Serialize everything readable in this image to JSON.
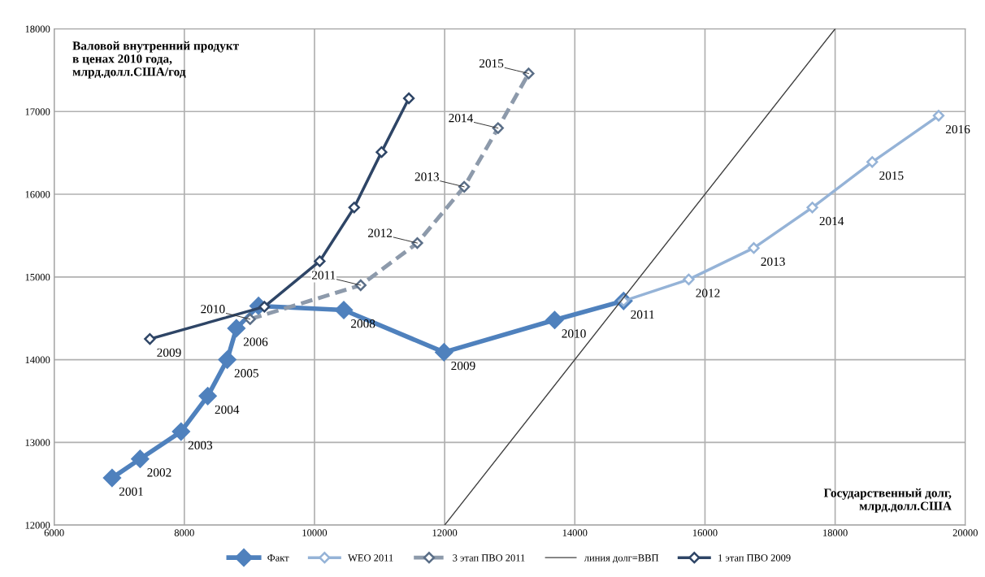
{
  "chart_data": {
    "type": "line",
    "xlabel": "Государственный долг,\nмлрд.долл.США",
    "ylabel": "Валовой внутренний продукт\nв ценах 2010 года,\nмлрд.долл.США/год",
    "series": [
      {
        "name": "Факт",
        "color": "#4f81bd",
        "line_style": "solid",
        "marker": "diamond",
        "x": [
          6890,
          7320,
          7950,
          8360,
          8660,
          8800,
          9140,
          10450,
          11990,
          13690,
          14750
        ],
        "values": [
          12570,
          12800,
          13130,
          13560,
          14000,
          14380,
          14650,
          14600,
          14090,
          14480,
          14710
        ]
      },
      {
        "name": "WEO 2011",
        "color": "#95b3d7",
        "line_style": "solid",
        "marker": "diamond",
        "x": [
          14750,
          15750,
          16750,
          17650,
          18570,
          19590
        ],
        "values": [
          14710,
          14970,
          15350,
          15840,
          16390,
          16950
        ]
      },
      {
        "name": "3 этап ПВО 2011",
        "color": "#5a6e87",
        "line_style": "dashed",
        "marker": "diamond",
        "x": [
          9010,
          10710,
          11580,
          12300,
          12820,
          13290
        ],
        "values": [
          14490,
          14900,
          15410,
          16090,
          16800,
          17460
        ]
      },
      {
        "name": "линия долг=ВВП",
        "color": "#404040",
        "line_style": "solid",
        "marker": "none",
        "x": [
          12000,
          18000
        ],
        "values": [
          12000,
          18000
        ]
      },
      {
        "name": "1 этап ПВО 2009",
        "color": "#2e4566",
        "line_style": "solid",
        "marker": "diamond",
        "x": [
          7470,
          9230,
          10080,
          10610,
          11030,
          11450
        ],
        "values": [
          14250,
          14640,
          15190,
          15840,
          16510,
          17160
        ]
      }
    ],
    "annotations": [
      {
        "text": "2001",
        "x": 6890,
        "y": 12570
      },
      {
        "text": "2002",
        "x": 7320,
        "y": 12800
      },
      {
        "text": "2003",
        "x": 7950,
        "y": 13130
      },
      {
        "text": "2004",
        "x": 8360,
        "y": 13560
      },
      {
        "text": "2005",
        "x": 8660,
        "y": 14000
      },
      {
        "text": "2006",
        "x": 8800,
        "y": 14380
      },
      {
        "text": "2008",
        "x": 10450,
        "y": 14600
      },
      {
        "text": "2009",
        "x": 11990,
        "y": 14090
      },
      {
        "text": "2010",
        "x": 13690,
        "y": 14480
      },
      {
        "text": "2011",
        "x": 14750,
        "y": 14710
      },
      {
        "text": "2012",
        "x": 15750,
        "y": 14970
      },
      {
        "text": "2013",
        "x": 16750,
        "y": 15350
      },
      {
        "text": "2014",
        "x": 17650,
        "y": 15840
      },
      {
        "text": "2015",
        "x": 18570,
        "y": 16390
      },
      {
        "text": "2016",
        "x": 19590,
        "y": 16950
      },
      {
        "text": "2009",
        "x": 7470,
        "y": 14250
      },
      {
        "text": "2010",
        "x": 9010,
        "y": 14490
      },
      {
        "text": "2011",
        "x": 10710,
        "y": 14900
      },
      {
        "text": "2012",
        "x": 11580,
        "y": 15410
      },
      {
        "text": "2013",
        "x": 12300,
        "y": 16090
      },
      {
        "text": "2014",
        "x": 12820,
        "y": 16800
      },
      {
        "text": "2015",
        "x": 13290,
        "y": 17460
      }
    ],
    "xlim": [
      6000,
      20000
    ],
    "xticks": [
      6000,
      8000,
      10000,
      12000,
      14000,
      16000,
      18000,
      20000
    ],
    "ylim": [
      12000,
      18000
    ],
    "yticks": [
      12000,
      13000,
      14000,
      15000,
      16000,
      17000,
      18000
    ],
    "grid": true,
    "legend": "bottom"
  }
}
